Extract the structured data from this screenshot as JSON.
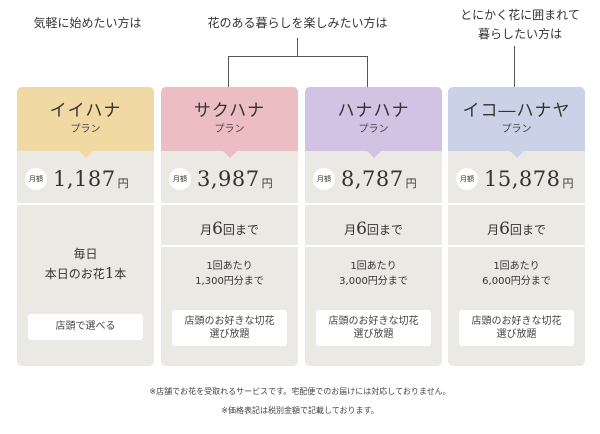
{
  "headers": {
    "beginners": "気軽に始めたい方は",
    "enjoy_line1": "花のある暮らしを楽しみたい方は",
    "surround_line1": "とにかく花に囲まれて",
    "surround_line2": "暮らしたい方は"
  },
  "plans": [
    {
      "name": "イイハナ",
      "sub": "プラン",
      "price_badge": "月額",
      "price": "1,187",
      "price_unit": "円",
      "daily_line1": "毎日",
      "daily_line2_pre": "本日のお花",
      "daily_line2_num": "1",
      "daily_line2_post": "本",
      "cta": "店頭で選べる",
      "color": "#f1d9a4"
    },
    {
      "name": "サクハナ",
      "sub": "プラン",
      "price_badge": "月額",
      "price": "3,987",
      "price_unit": "円",
      "times_pre": "月",
      "times_num": "6",
      "times_post": "回まで",
      "per_line1": "1回あたり",
      "per_line2": "1,300円分まで",
      "cta_line1": "店頭のお好きな切花",
      "cta_line2": "選び放題",
      "color": "#ecbec4"
    },
    {
      "name": "ハナハナ",
      "sub": "プラン",
      "price_badge": "月額",
      "price": "8,787",
      "price_unit": "円",
      "times_pre": "月",
      "times_num": "6",
      "times_post": "回まで",
      "per_line1": "1回あたり",
      "per_line2": "3,000円分まで",
      "cta_line1": "店頭のお好きな切花",
      "cta_line2": "選び放題",
      "color": "#d2c2e4"
    },
    {
      "name": "イコ―ハナヤ",
      "sub": "プラン",
      "price_badge": "月額",
      "price": "15,878",
      "price_unit": "円",
      "times_pre": "月",
      "times_num": "6",
      "times_post": "回まで",
      "per_line1": "1回あたり",
      "per_line2": "6,000円分まで",
      "cta_line1": "店頭のお好きな切花",
      "cta_line2": "選び放題",
      "color": "#cbd2e8"
    }
  ],
  "footnotes": {
    "line1": "※店舗でお花を受取れるサービスです。宅配便でのお届けには対応しておりません。",
    "line2": "※価格表記は税別金額で記載しております。"
  }
}
